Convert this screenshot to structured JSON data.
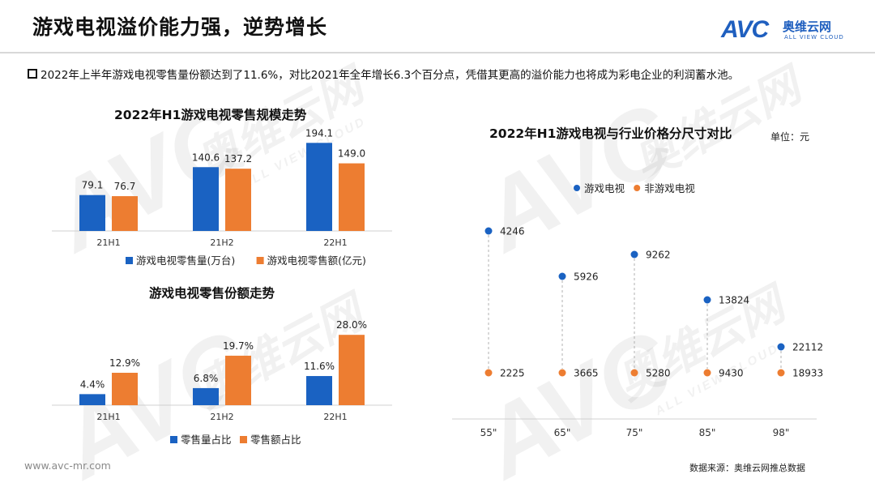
{
  "page": {
    "title": "游戏电视溢价能力强，逆势增长",
    "bullet": "2022年上半年游戏电视零售量份额达到了11.6%，对比2021年全年增长6.3个百分点，凭借其更高的溢价能力也将成为彩电企业的利润蓄水池。",
    "website": "www.avc-mr.com",
    "source": "数据来源：奥维云网推总数据"
  },
  "logo": {
    "avc": "AVC",
    "cn": "奥维云网",
    "en": "ALL VIEW CLOUD"
  },
  "watermark": {
    "avc": "AVC",
    "cn": "奥维云网",
    "en": "ALL VIEW CLOUD"
  },
  "colors": {
    "blue": "#1a62c2",
    "orange": "#ed7d31",
    "axis": "#d0d0d0"
  },
  "chart_data": [
    {
      "type": "bar",
      "title": "2022年H1游戏电视零售规模走势",
      "categories": [
        "21H1",
        "21H2",
        "22H1"
      ],
      "series": [
        {
          "name": "游戏电视零售量(万台)",
          "values": [
            79.1,
            140.6,
            194.1
          ],
          "labels": [
            "79.1",
            "140.6",
            "194.1"
          ],
          "color": "#1a62c2"
        },
        {
          "name": "游戏电视零售额(亿元)",
          "values": [
            76.7,
            137.2,
            149.0
          ],
          "labels": [
            "76.7",
            "137.2",
            "149.0"
          ],
          "color": "#ed7d31"
        }
      ],
      "ylim": [
        0,
        200
      ],
      "legend": "bottom"
    },
    {
      "type": "bar",
      "title": "游戏电视零售份额走势",
      "categories": [
        "21H1",
        "21H2",
        "22H1"
      ],
      "series": [
        {
          "name": "零售量占比",
          "values": [
            4.4,
            6.8,
            11.6
          ],
          "labels": [
            "4.4%",
            "6.8%",
            "11.6%"
          ],
          "color": "#1a62c2"
        },
        {
          "name": "零售额占比",
          "values": [
            12.9,
            19.7,
            28.0
          ],
          "labels": [
            "12.9%",
            "19.7%",
            "28.0%"
          ],
          "color": "#ed7d31"
        }
      ],
      "ylim": [
        0,
        30
      ],
      "legend": "bottom"
    },
    {
      "type": "scatter",
      "title": "2022年H1游戏电视与行业价格分尺寸对比",
      "unit": "单位：元",
      "categories": [
        "55\"",
        "65\"",
        "75\"",
        "85\"",
        "98\""
      ],
      "series": [
        {
          "name": "游戏电视",
          "values": [
            4246,
            5926,
            9262,
            13824,
            22112
          ],
          "color": "#1a62c2"
        },
        {
          "name": "非游戏电视",
          "values": [
            2225,
            3665,
            5280,
            9430,
            18933
          ],
          "color": "#ed7d31"
        }
      ],
      "legend": "top"
    }
  ]
}
